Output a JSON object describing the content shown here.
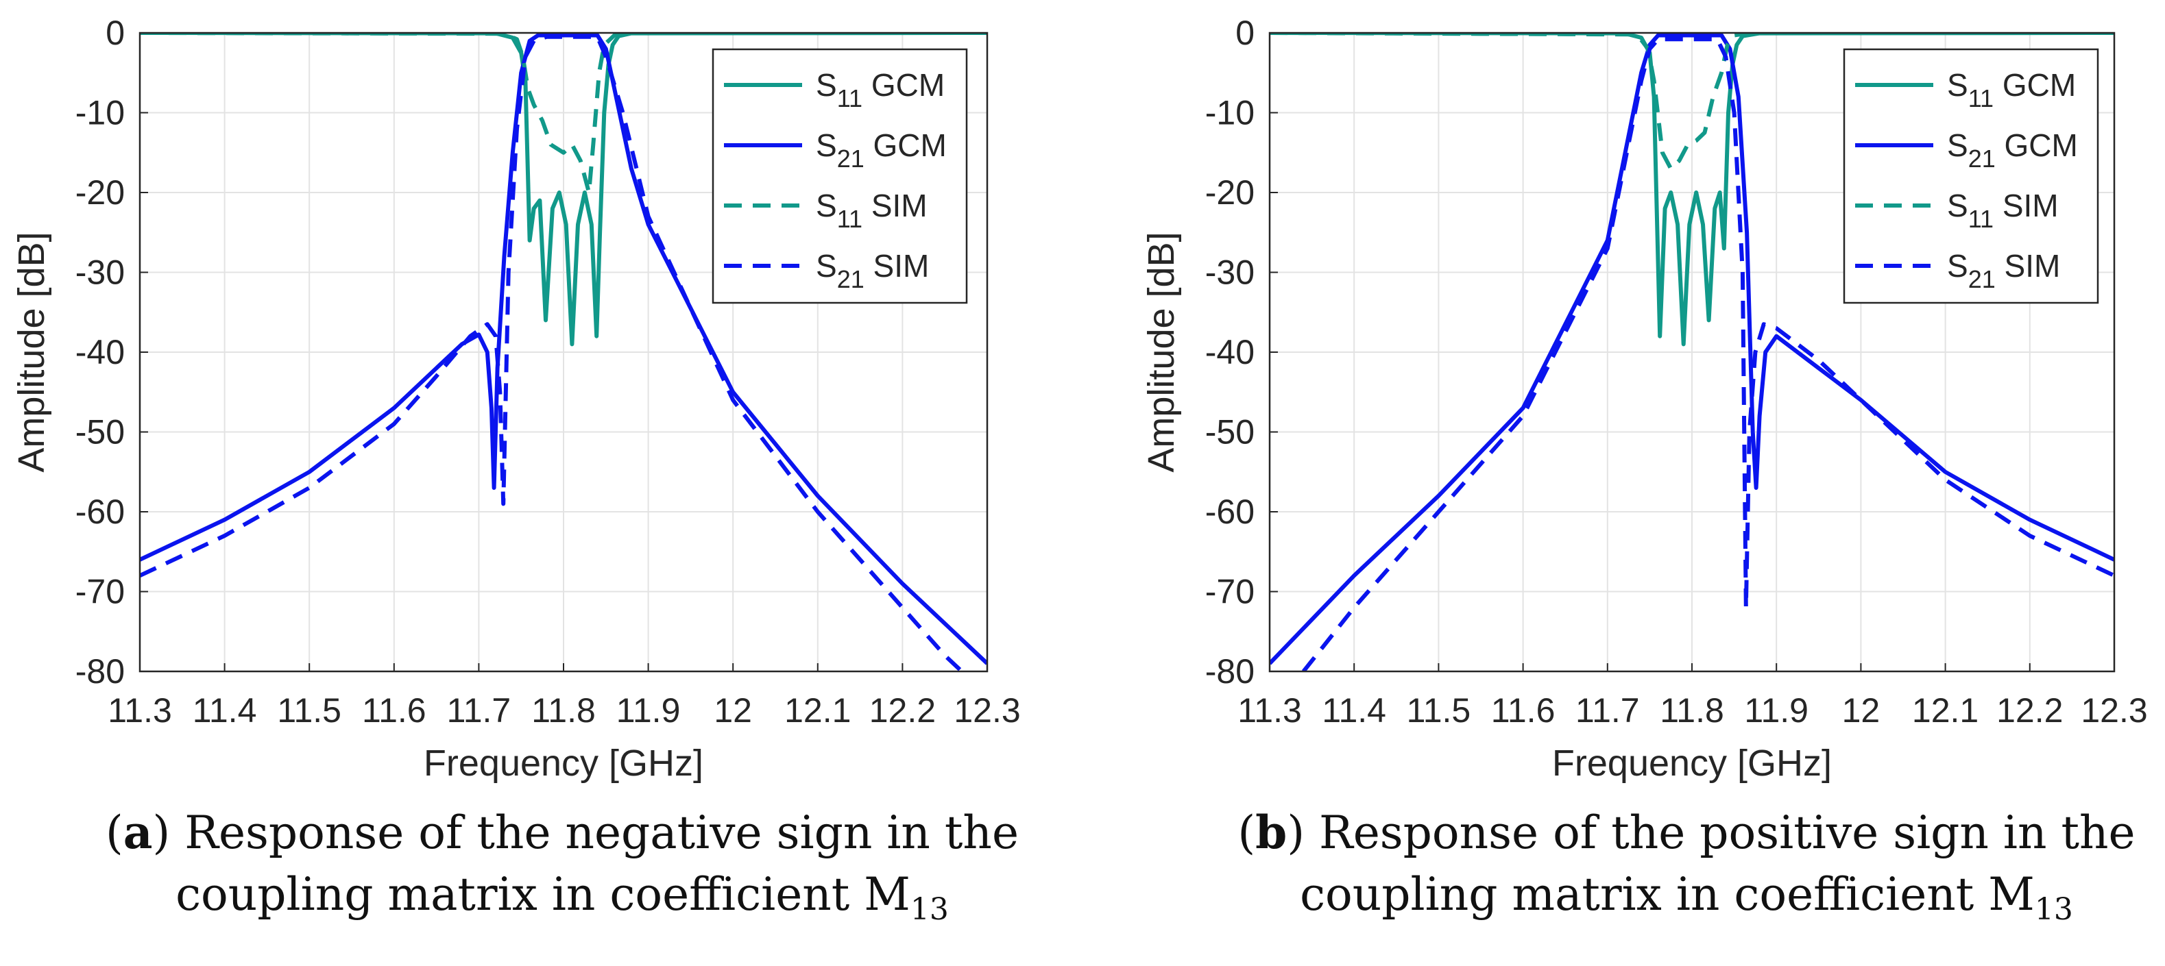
{
  "colors": {
    "s11": "#11998a",
    "s21": "#0a14ee",
    "grid": "#e3e3e3",
    "axis": "#262626"
  },
  "chart_data": [
    {
      "type": "line",
      "panel": "a",
      "xlabel": "Frequency [GHz]",
      "ylabel": "Amplitude [dB]",
      "xlim": [
        11.3,
        12.3
      ],
      "ylim": [
        -80,
        0
      ],
      "xticks": [
        "11.3",
        "11.4",
        "11.5",
        "11.6",
        "11.7",
        "11.8",
        "11.9",
        "12",
        "12.1",
        "12.2",
        "12.3"
      ],
      "yticks": [
        "0",
        "-10",
        "-20",
        "-30",
        "-40",
        "-50",
        "-60",
        "-70",
        "-80"
      ],
      "grid": true,
      "legend_position": "top-right",
      "caption": {
        "label": "a",
        "line1": "Response of the negative sign in the",
        "line2": "coupling matrix in coefficient M",
        "sub": "13"
      },
      "series": [
        {
          "name": "S11 GCM",
          "sym": "S",
          "sub": "11",
          "suffix": "GCM",
          "color_key": "s11",
          "dash": false,
          "points": [
            [
              11.3,
              0
            ],
            [
              11.72,
              -0.05
            ],
            [
              11.74,
              -0.6
            ],
            [
              11.75,
              -2.5
            ],
            [
              11.755,
              -6
            ],
            [
              11.76,
              -26
            ],
            [
              11.765,
              -22
            ],
            [
              11.772,
              -21
            ],
            [
              11.779,
              -36
            ],
            [
              11.787,
              -22
            ],
            [
              11.795,
              -20
            ],
            [
              11.803,
              -24
            ],
            [
              11.81,
              -39
            ],
            [
              11.817,
              -24
            ],
            [
              11.825,
              -20
            ],
            [
              11.833,
              -24
            ],
            [
              11.839,
              -38
            ],
            [
              11.843,
              -25
            ],
            [
              11.848,
              -10
            ],
            [
              11.853,
              -4
            ],
            [
              11.858,
              -1.5
            ],
            [
              11.865,
              -0.4
            ],
            [
              11.88,
              -0.05
            ],
            [
              12.3,
              0
            ]
          ]
        },
        {
          "name": "S21 GCM",
          "sym": "S",
          "sub": "21",
          "suffix": "GCM",
          "color_key": "s21",
          "dash": false,
          "points": [
            [
              11.3,
              -66
            ],
            [
              11.4,
              -61
            ],
            [
              11.5,
              -55
            ],
            [
              11.6,
              -47
            ],
            [
              11.65,
              -42
            ],
            [
              11.68,
              -39
            ],
            [
              11.7,
              -37.8
            ],
            [
              11.71,
              -40
            ],
            [
              11.715,
              -47
            ],
            [
              11.718,
              -57
            ],
            [
              11.722,
              -42
            ],
            [
              11.73,
              -28
            ],
            [
              11.74,
              -15
            ],
            [
              11.75,
              -5
            ],
            [
              11.76,
              -1
            ],
            [
              11.77,
              -0.3
            ],
            [
              11.84,
              -0.3
            ],
            [
              11.85,
              -2
            ],
            [
              11.86,
              -7
            ],
            [
              11.88,
              -17
            ],
            [
              11.9,
              -24
            ],
            [
              12.0,
              -45
            ],
            [
              12.1,
              -58
            ],
            [
              12.2,
              -69
            ],
            [
              12.3,
              -79
            ]
          ]
        },
        {
          "name": "S11 SIM",
          "sym": "S",
          "sub": "11",
          "suffix": "SIM",
          "color_key": "s11",
          "dash": true,
          "points": [
            [
              11.3,
              0
            ],
            [
              11.73,
              -0.1
            ],
            [
              11.745,
              -0.8
            ],
            [
              11.752,
              -3
            ],
            [
              11.758,
              -7
            ],
            [
              11.765,
              -9
            ],
            [
              11.775,
              -11
            ],
            [
              11.785,
              -14
            ],
            [
              11.8,
              -15
            ],
            [
              11.81,
              -14
            ],
            [
              11.82,
              -16
            ],
            [
              11.83,
              -20
            ],
            [
              11.835,
              -14
            ],
            [
              11.842,
              -5
            ],
            [
              11.848,
              -1.5
            ],
            [
              11.86,
              -0.3
            ],
            [
              11.88,
              0
            ],
            [
              12.3,
              0
            ]
          ]
        },
        {
          "name": "S21 SIM",
          "sym": "S",
          "sub": "21",
          "suffix": "SIM",
          "color_key": "s21",
          "dash": true,
          "points": [
            [
              11.3,
              -68
            ],
            [
              11.4,
              -63
            ],
            [
              11.5,
              -57
            ],
            [
              11.6,
              -49
            ],
            [
              11.65,
              -43
            ],
            [
              11.69,
              -38
            ],
            [
              11.71,
              -36.5
            ],
            [
              11.72,
              -38
            ],
            [
              11.725,
              -45
            ],
            [
              11.729,
              -59
            ],
            [
              11.735,
              -30
            ],
            [
              11.745,
              -12
            ],
            [
              11.755,
              -3
            ],
            [
              11.765,
              -1
            ],
            [
              11.78,
              -0.5
            ],
            [
              11.84,
              -0.5
            ],
            [
              11.85,
              -3
            ],
            [
              11.87,
              -10
            ],
            [
              11.9,
              -23
            ],
            [
              12.0,
              -46
            ],
            [
              12.1,
              -60
            ],
            [
              12.2,
              -72
            ],
            [
              12.25,
              -78
            ],
            [
              12.28,
              -81
            ]
          ]
        }
      ]
    },
    {
      "type": "line",
      "panel": "b",
      "xlabel": "Frequency [GHz]",
      "ylabel": "Amplitude [dB]",
      "xlim": [
        11.3,
        12.3
      ],
      "ylim": [
        -80,
        0
      ],
      "xticks": [
        "11.3",
        "11.4",
        "11.5",
        "11.6",
        "11.7",
        "11.8",
        "11.9",
        "12",
        "12.1",
        "12.2",
        "12.3"
      ],
      "yticks": [
        "0",
        "-10",
        "-20",
        "-30",
        "-40",
        "-50",
        "-60",
        "-70",
        "-80"
      ],
      "grid": true,
      "legend_position": "top-right",
      "caption": {
        "label": "b",
        "line1": "Response of the positive sign in the",
        "line2": "coupling matrix in coefficient M",
        "sub": "13"
      },
      "series": [
        {
          "name": "S11 GCM",
          "sym": "S",
          "sub": "11",
          "suffix": "GCM",
          "color_key": "s11",
          "dash": false,
          "points": [
            [
              11.3,
              0
            ],
            [
              11.72,
              -0.05
            ],
            [
              11.74,
              -0.6
            ],
            [
              11.75,
              -2.5
            ],
            [
              11.755,
              -8
            ],
            [
              11.762,
              -38
            ],
            [
              11.768,
              -22
            ],
            [
              11.775,
              -20
            ],
            [
              11.783,
              -24
            ],
            [
              11.79,
              -39
            ],
            [
              11.797,
              -24
            ],
            [
              11.805,
              -20
            ],
            [
              11.813,
              -24
            ],
            [
              11.82,
              -36
            ],
            [
              11.827,
              -22
            ],
            [
              11.833,
              -20
            ],
            [
              11.838,
              -27
            ],
            [
              11.843,
              -10
            ],
            [
              11.848,
              -4
            ],
            [
              11.853,
              -1.5
            ],
            [
              11.86,
              -0.4
            ],
            [
              11.88,
              -0.05
            ],
            [
              12.3,
              0
            ]
          ]
        },
        {
          "name": "S21 GCM",
          "sym": "S",
          "sub": "21",
          "suffix": "GCM",
          "color_key": "s21",
          "dash": false,
          "points": [
            [
              11.3,
              -79
            ],
            [
              11.4,
              -68
            ],
            [
              11.5,
              -58
            ],
            [
              11.6,
              -47
            ],
            [
              11.7,
              -26
            ],
            [
              11.74,
              -5
            ],
            [
              11.75,
              -1.5
            ],
            [
              11.76,
              -0.3
            ],
            [
              11.835,
              -0.3
            ],
            [
              11.845,
              -2
            ],
            [
              11.855,
              -8
            ],
            [
              11.865,
              -25
            ],
            [
              11.872,
              -50
            ],
            [
              11.876,
              -57
            ],
            [
              11.88,
              -48
            ],
            [
              11.887,
              -40
            ],
            [
              11.9,
              -38
            ],
            [
              11.95,
              -42
            ],
            [
              12.0,
              -46
            ],
            [
              12.1,
              -55
            ],
            [
              12.2,
              -61
            ],
            [
              12.3,
              -66
            ]
          ]
        },
        {
          "name": "S11 SIM",
          "sym": "S",
          "sub": "11",
          "suffix": "SIM",
          "color_key": "s11",
          "dash": true,
          "points": [
            [
              11.3,
              0
            ],
            [
              11.735,
              -0.2
            ],
            [
              11.748,
              -2
            ],
            [
              11.755,
              -6
            ],
            [
              11.765,
              -15
            ],
            [
              11.775,
              -17
            ],
            [
              11.785,
              -16
            ],
            [
              11.795,
              -14
            ],
            [
              11.805,
              -13.5
            ],
            [
              11.815,
              -12.5
            ],
            [
              11.825,
              -8
            ],
            [
              11.835,
              -5
            ],
            [
              11.842,
              -1.5
            ],
            [
              11.85,
              -0.3
            ],
            [
              11.87,
              0
            ],
            [
              12.3,
              0
            ]
          ]
        },
        {
          "name": "S21 SIM",
          "sym": "S",
          "sub": "21",
          "suffix": "SIM",
          "color_key": "s21",
          "dash": true,
          "points": [
            [
              11.34,
              -80
            ],
            [
              11.4,
              -72
            ],
            [
              11.5,
              -60
            ],
            [
              11.6,
              -48
            ],
            [
              11.7,
              -27
            ],
            [
              11.74,
              -6
            ],
            [
              11.75,
              -2
            ],
            [
              11.76,
              -0.8
            ],
            [
              11.83,
              -0.8
            ],
            [
              11.84,
              -3
            ],
            [
              11.85,
              -10
            ],
            [
              11.86,
              -30
            ],
            [
              11.864,
              -72
            ],
            [
              11.868,
              -50
            ],
            [
              11.875,
              -40
            ],
            [
              11.885,
              -36.5
            ],
            [
              11.9,
              -37
            ],
            [
              11.95,
              -41
            ],
            [
              12.0,
              -46
            ],
            [
              12.1,
              -56
            ],
            [
              12.2,
              -63
            ],
            [
              12.3,
              -68
            ]
          ]
        }
      ]
    }
  ]
}
